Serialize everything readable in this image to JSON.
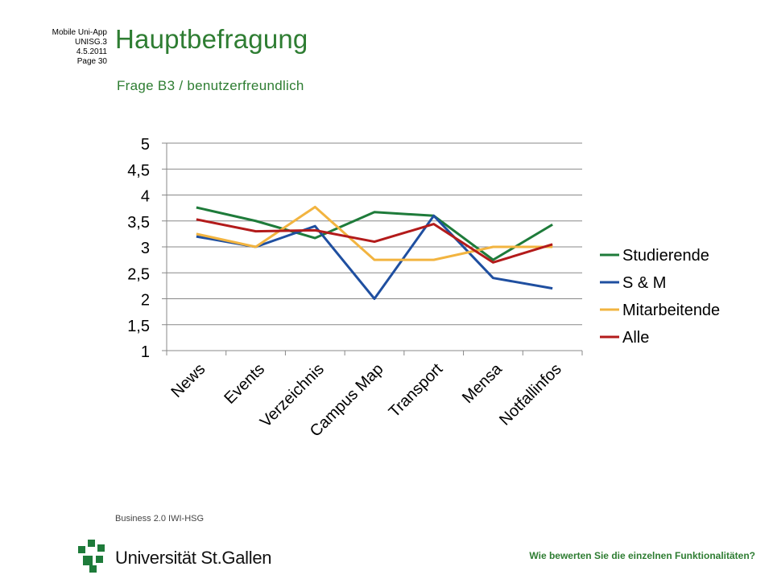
{
  "header": {
    "meta_lines": [
      "Mobile Uni-App",
      "UNISG.3",
      "4.5.2011",
      "Page 30"
    ],
    "title": "Hauptbefragung",
    "subtitle": "Frage B3 / benutzerfreundlich"
  },
  "footer": {
    "question": "Wie bewerten Sie die einzelnen Funktionalitäten?",
    "logo_top": "Business 2.0 IWI-HSG",
    "logo_bottom": "Universität St.Gallen"
  },
  "chart_data": {
    "type": "line",
    "categories": [
      "News",
      "Events",
      "Verzeichnis",
      "Campus Map",
      "Transport",
      "Mensa",
      "Notfallinfos"
    ],
    "ylim": [
      1,
      5
    ],
    "yticks": [
      "1",
      "1,5",
      "2",
      "2,5",
      "3",
      "3,5",
      "4",
      "4,5",
      "5"
    ],
    "ytick_values": [
      1,
      1.5,
      2,
      2.5,
      3,
      3.5,
      4,
      4.5,
      5
    ],
    "grid": true,
    "legend_position": "right",
    "series": [
      {
        "name": "Studierende",
        "color": "#1e7b3a",
        "values": [
          3.76,
          3.5,
          3.17,
          3.67,
          3.6,
          2.75,
          3.43
        ]
      },
      {
        "name": "S & M",
        "color": "#1f4fa0",
        "values": [
          3.2,
          3.0,
          3.4,
          2.0,
          3.6,
          2.4,
          2.2
        ]
      },
      {
        "name": "Mitarbeitende",
        "color": "#f2b440",
        "values": [
          3.25,
          3.0,
          3.77,
          2.75,
          2.75,
          3.0,
          3.0
        ]
      },
      {
        "name": "Alle",
        "color": "#b31b1b",
        "values": [
          3.53,
          3.3,
          3.32,
          3.1,
          3.44,
          2.7,
          3.05
        ]
      }
    ]
  }
}
